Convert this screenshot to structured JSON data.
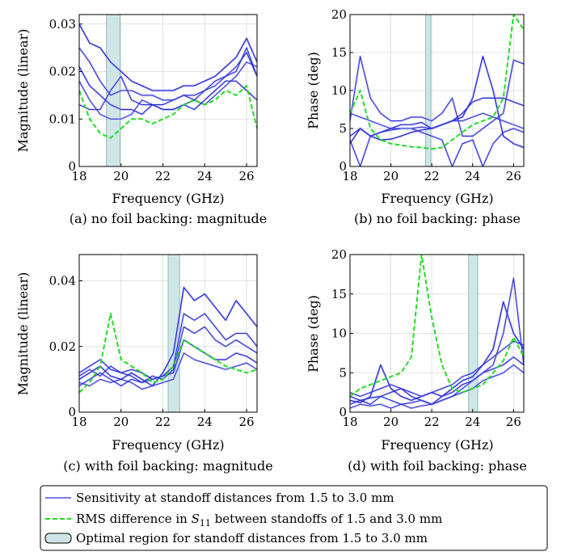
{
  "colors": {
    "sensitivity": "#2b2bd6",
    "sensitivity_raw": "#b8bdf0",
    "rms": "#22dd22",
    "optimal_fill": "#cfe6e6",
    "optimal_stroke": "#8fbcbc"
  },
  "legend": {
    "sensitivity": "Sensitivity at standoff distances from 1.5 to 3.0 mm",
    "rms_prefix": "RMS difference in ",
    "rms_symbol": "S",
    "rms_subscript": "11",
    "rms_suffix": " between standoffs of 1.5 and 3.0 mm",
    "optimal": "Optimal region for standoff distances from 1.5 to 3.0 mm"
  },
  "chart_data": [
    {
      "type": "line",
      "caption": "(a) no foil backing: magnitude",
      "xlabel": "Frequency (GHz)",
      "ylabel": "Magnitude (linear)",
      "xlim": [
        18,
        26.5
      ],
      "ylim": [
        0,
        0.032
      ],
      "xticks": [
        18,
        20,
        22,
        24,
        26
      ],
      "xtick_labels": [
        "18",
        "20",
        "22",
        "24",
        "26"
      ],
      "yticks": [
        0,
        0.01,
        0.02,
        0.03
      ],
      "ytick_labels": [
        "0",
        "0.01",
        "0.02",
        "0.03"
      ],
      "optimal_region": [
        19.3,
        19.95
      ],
      "grid": true,
      "x": [
        18,
        18.5,
        19,
        19.5,
        20,
        20.5,
        21,
        21.5,
        22,
        22.5,
        23,
        23.5,
        24,
        24.5,
        25,
        25.5,
        26,
        26.5
      ],
      "series": [
        {
          "values": [
            0.03,
            0.026,
            0.025,
            0.022,
            0.02,
            0.018,
            0.017,
            0.016,
            0.016,
            0.016,
            0.017,
            0.017,
            0.018,
            0.019,
            0.021,
            0.023,
            0.027,
            0.022
          ]
        },
        {
          "values": [
            0.025,
            0.022,
            0.018,
            0.015,
            0.016,
            0.016,
            0.015,
            0.015,
            0.014,
            0.014,
            0.015,
            0.015,
            0.016,
            0.018,
            0.019,
            0.021,
            0.024,
            0.019
          ]
        },
        {
          "values": [
            0.021,
            0.017,
            0.015,
            0.013,
            0.012,
            0.012,
            0.011,
            0.013,
            0.012,
            0.012,
            0.013,
            0.012,
            0.014,
            0.016,
            0.018,
            0.018,
            0.016,
            0.014
          ]
        },
        {
          "values": [
            0.018,
            0.014,
            0.011,
            0.01,
            0.01,
            0.011,
            0.014,
            0.013,
            0.012,
            0.012,
            0.013,
            0.014,
            0.013,
            0.015,
            0.017,
            0.019,
            0.022,
            0.021
          ]
        },
        {
          "values": [
            0.013,
            0.012,
            0.012,
            0.016,
            0.019,
            0.014,
            0.013,
            0.013,
            0.013,
            0.014,
            0.015,
            0.014,
            0.016,
            0.017,
            0.019,
            0.02,
            0.025,
            0.019
          ]
        }
      ],
      "rms": [
        0.016,
        0.01,
        0.007,
        0.006,
        0.008,
        0.01,
        0.01,
        0.009,
        0.01,
        0.011,
        0.013,
        0.014,
        0.013,
        0.014,
        0.016,
        0.015,
        0.017,
        0.008
      ]
    },
    {
      "type": "line",
      "caption": "(b) no foil backing: phase",
      "xlabel": "Frequency (GHz)",
      "ylabel": "Phase (deg)",
      "xlim": [
        18,
        26.5
      ],
      "ylim": [
        0,
        20
      ],
      "xticks": [
        18,
        20,
        22,
        24,
        26
      ],
      "xtick_labels": [
        "18",
        "20",
        "22",
        "24",
        "26"
      ],
      "yticks": [
        0,
        5,
        10,
        15,
        20
      ],
      "ytick_labels": [
        "0",
        "5",
        "10",
        "15",
        "20"
      ],
      "optimal_region": [
        21.7,
        21.95
      ],
      "grid": true,
      "x": [
        18,
        18.5,
        19,
        19.5,
        20,
        20.5,
        21,
        21.5,
        22,
        22.5,
        23,
        23.5,
        24,
        24.5,
        25,
        25.5,
        26,
        26.5
      ],
      "series": [
        {
          "values": [
            3.0,
            5.0,
            4.0,
            3.5,
            3.6,
            4.0,
            4.5,
            4.8,
            5.0,
            5.5,
            6.0,
            6.5,
            9.0,
            14.5,
            10.0,
            4.0,
            3.0,
            2.5
          ]
        },
        {
          "values": [
            6.0,
            14.5,
            9.0,
            7.0,
            6.0,
            6.0,
            6.5,
            6.5,
            6.0,
            7.0,
            9.0,
            4.0,
            4.0,
            5.0,
            6.0,
            7.0,
            14.0,
            13.5
          ]
        },
        {
          "values": [
            4.0,
            5.0,
            4.0,
            4.5,
            5.0,
            5.5,
            5.5,
            5.8,
            5.0,
            5.5,
            6.0,
            7.0,
            8.5,
            9.0,
            9.0,
            9.0,
            8.5,
            8.0
          ]
        },
        {
          "values": [
            7.0,
            6.5,
            6.0,
            5.5,
            5.0,
            5.0,
            5.0,
            5.2,
            5.0,
            5.5,
            6.0,
            6.0,
            6.5,
            7.0,
            6.5,
            6.0,
            5.5,
            5.0
          ]
        },
        {
          "values": [
            3.5,
            0.0,
            4.0,
            4.5,
            4.8,
            5.0,
            5.0,
            4.5,
            4.0,
            3.5,
            0.0,
            3.0,
            3.5,
            0.0,
            3.0,
            4.5,
            5.0,
            4.5
          ]
        }
      ],
      "rms": [
        7.0,
        10.0,
        5.0,
        3.5,
        3.0,
        2.8,
        2.6,
        2.5,
        2.3,
        2.5,
        3.5,
        4.5,
        5.5,
        6.0,
        6.5,
        9.0,
        20.0,
        18.0
      ]
    },
    {
      "type": "line",
      "caption": "(c) with foil backing: magnitude",
      "xlabel": "Frequency (GHz)",
      "ylabel": "Magnitude (linear)",
      "xlim": [
        18,
        26.5
      ],
      "ylim": [
        0,
        0.048
      ],
      "xticks": [
        18,
        20,
        22,
        24,
        26
      ],
      "xtick_labels": [
        "18",
        "20",
        "22",
        "24",
        "26"
      ],
      "yticks": [
        0,
        0.02,
        0.04
      ],
      "ytick_labels": [
        "0",
        "0.02",
        "0.04"
      ],
      "optimal_region": [
        22.25,
        22.8
      ],
      "grid": true,
      "x": [
        18,
        18.5,
        19,
        19.5,
        20,
        20.5,
        21,
        21.5,
        22,
        22.5,
        23,
        23.5,
        24,
        24.5,
        25,
        25.5,
        26,
        26.5
      ],
      "series": [
        {
          "values": [
            0.01,
            0.012,
            0.014,
            0.011,
            0.01,
            0.012,
            0.01,
            0.008,
            0.012,
            0.018,
            0.038,
            0.034,
            0.036,
            0.032,
            0.028,
            0.034,
            0.03,
            0.026
          ]
        },
        {
          "values": [
            0.008,
            0.01,
            0.012,
            0.01,
            0.008,
            0.01,
            0.009,
            0.01,
            0.011,
            0.014,
            0.03,
            0.028,
            0.03,
            0.026,
            0.022,
            0.024,
            0.024,
            0.02
          ]
        },
        {
          "values": [
            0.012,
            0.014,
            0.016,
            0.013,
            0.012,
            0.013,
            0.012,
            0.01,
            0.011,
            0.012,
            0.022,
            0.02,
            0.018,
            0.016,
            0.016,
            0.018,
            0.017,
            0.015
          ]
        },
        {
          "values": [
            0.009,
            0.008,
            0.01,
            0.009,
            0.01,
            0.009,
            0.007,
            0.008,
            0.009,
            0.01,
            0.018,
            0.016,
            0.015,
            0.014,
            0.013,
            0.014,
            0.015,
            0.013
          ]
        },
        {
          "values": [
            0.011,
            0.013,
            0.011,
            0.014,
            0.012,
            0.011,
            0.009,
            0.011,
            0.01,
            0.013,
            0.026,
            0.024,
            0.026,
            0.022,
            0.02,
            0.022,
            0.02,
            0.018
          ]
        }
      ],
      "rms": [
        0.006,
        0.009,
        0.014,
        0.03,
        0.016,
        0.014,
        0.012,
        0.009,
        0.01,
        0.014,
        0.022,
        0.02,
        0.018,
        0.016,
        0.014,
        0.013,
        0.012,
        0.013
      ]
    },
    {
      "type": "line",
      "caption": "(d) with foil backing: phase",
      "xlabel": "Frequency (GHz)",
      "ylabel": "Phase (deg)",
      "xlim": [
        18,
        26.5
      ],
      "ylim": [
        0,
        20
      ],
      "xticks": [
        18,
        20,
        22,
        24,
        26
      ],
      "xtick_labels": [
        "18",
        "20",
        "22",
        "24",
        "26"
      ],
      "yticks": [
        0,
        5,
        10,
        15,
        20
      ],
      "ytick_labels": [
        "0",
        "5",
        "10",
        "15",
        "20"
      ],
      "optimal_region": [
        23.8,
        24.25
      ],
      "grid": true,
      "x": [
        18,
        18.5,
        19,
        19.5,
        20,
        20.5,
        21,
        21.5,
        22,
        22.5,
        23,
        23.5,
        24,
        24.5,
        25,
        25.5,
        26,
        26.5
      ],
      "series": [
        {
          "values": [
            1.5,
            1.2,
            2.0,
            6.0,
            3.0,
            2.0,
            1.5,
            2.0,
            2.5,
            2.0,
            3.0,
            4.0,
            4.5,
            6.0,
            8.0,
            14.0,
            10.0,
            8.0
          ]
        },
        {
          "values": [
            1.0,
            1.5,
            1.0,
            2.0,
            1.5,
            1.0,
            1.2,
            1.5,
            1.0,
            1.5,
            2.0,
            3.0,
            4.0,
            5.0,
            6.0,
            10.0,
            17.0,
            6.0
          ]
        },
        {
          "values": [
            2.0,
            1.5,
            1.8,
            2.0,
            2.5,
            3.0,
            2.0,
            1.5,
            1.0,
            2.0,
            2.5,
            3.5,
            4.0,
            5.0,
            5.5,
            6.0,
            7.0,
            6.0
          ]
        },
        {
          "values": [
            0.5,
            1.0,
            0.8,
            1.0,
            0.5,
            1.0,
            0.5,
            0.8,
            1.0,
            1.5,
            2.0,
            2.5,
            3.0,
            4.0,
            4.5,
            5.0,
            6.0,
            5.0
          ]
        },
        {
          "values": [
            2.5,
            2.0,
            2.5,
            3.0,
            3.5,
            3.0,
            2.5,
            2.0,
            2.5,
            3.0,
            3.5,
            4.5,
            5.0,
            6.0,
            7.0,
            8.0,
            9.0,
            8.5
          ]
        }
      ],
      "rms": [
        2.0,
        3.0,
        3.5,
        4.0,
        4.5,
        5.0,
        7.0,
        20.0,
        12.0,
        6.0,
        3.0,
        2.5,
        3.0,
        3.5,
        5.0,
        6.5,
        9.5,
        7.0
      ]
    }
  ]
}
